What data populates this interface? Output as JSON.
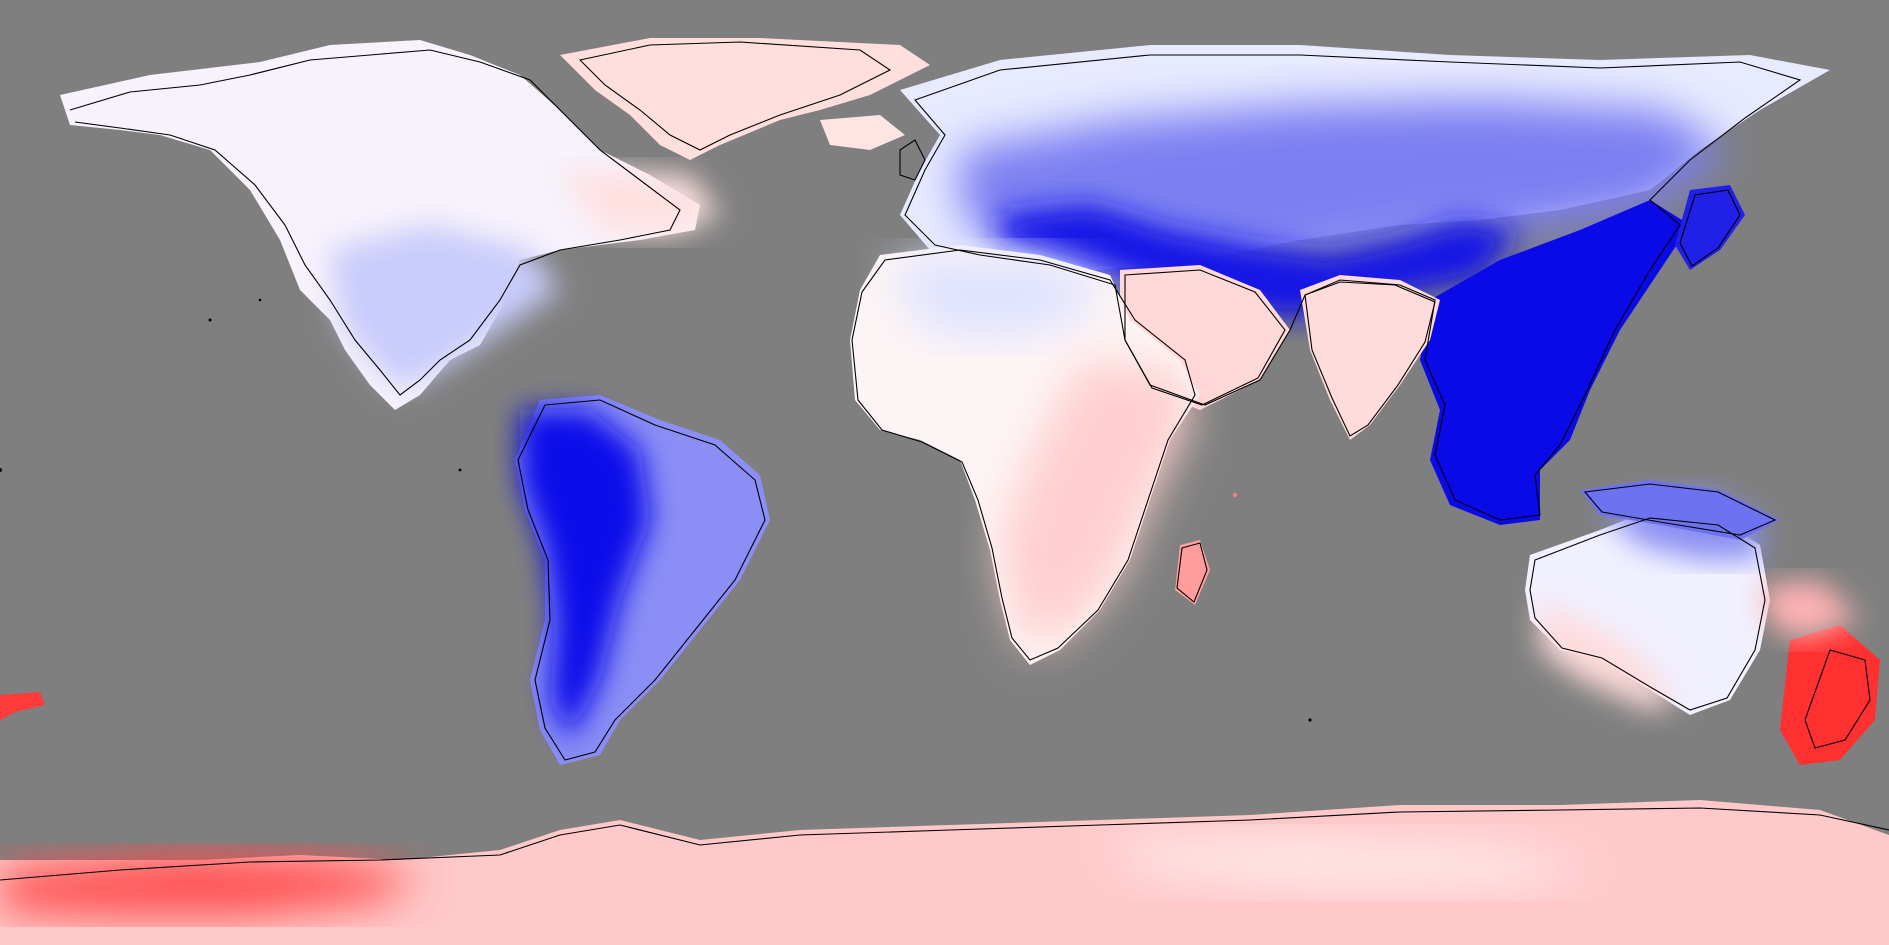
{
  "map": {
    "projection": "equirectangular",
    "background": "#7f7f7f",
    "ocean_color": "#7f7f7f",
    "coastline_color": "#000000",
    "diverging_scale": {
      "strong_negative": "#0000ee",
      "mid_negative": "#6f6ff2",
      "weak_negative": "#e6e9ff",
      "neutral": "#fdf7f7",
      "weak_positive": "#ffd9d9",
      "mid_positive": "#ff9e9e",
      "strong_positive": "#ff2a2a"
    },
    "regions": [
      {
        "name": "north-america",
        "level": "weak-negative",
        "core": "mid-negative"
      },
      {
        "name": "greenland",
        "level": "weak-positive"
      },
      {
        "name": "south-america",
        "level": "strong-negative"
      },
      {
        "name": "europe",
        "level": "weak-negative"
      },
      {
        "name": "northern-asia",
        "level": "mid-negative"
      },
      {
        "name": "east-asia",
        "level": "strong-negative"
      },
      {
        "name": "africa",
        "level": "weak-positive"
      },
      {
        "name": "east-africa",
        "level": "mid-positive"
      },
      {
        "name": "arabia",
        "level": "weak-positive"
      },
      {
        "name": "india",
        "level": "weak-positive"
      },
      {
        "name": "madagascar",
        "level": "mid-positive"
      },
      {
        "name": "australia",
        "level": "weak-negative"
      },
      {
        "name": "new-zealand",
        "level": "strong-positive"
      },
      {
        "name": "antarctica",
        "level": "mid-positive"
      }
    ]
  }
}
